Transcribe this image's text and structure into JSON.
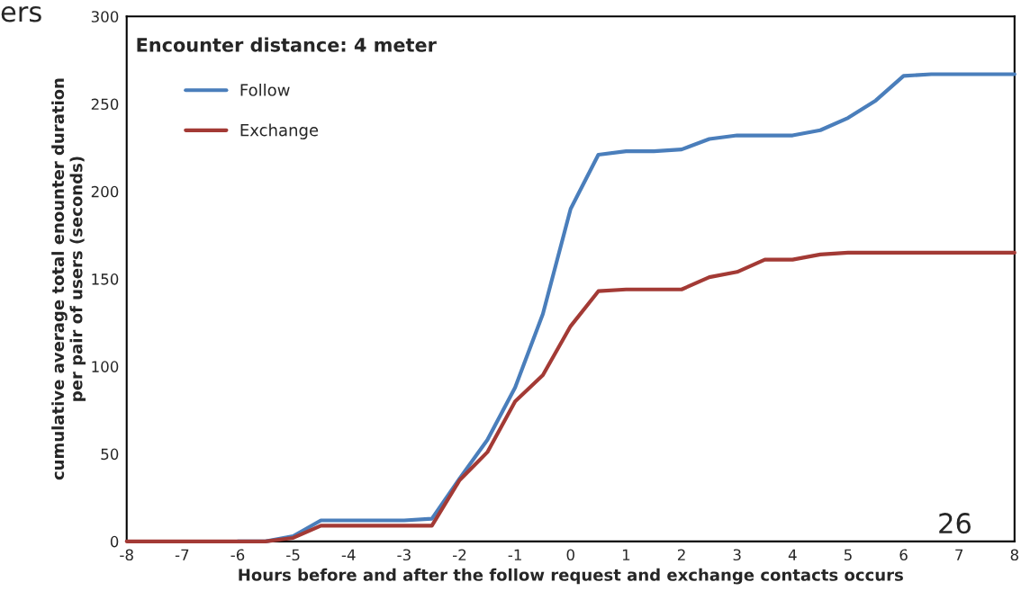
{
  "chart_data": {
    "type": "line",
    "title": "Encounter distance: 4 meter",
    "xlabel": "Hours before and after the follow request and exchange contacts occurs",
    "ylabel": "cumulative average total enounter duration\nper pair of users (seconds)",
    "x": [
      -8,
      -7.5,
      -7,
      -6.5,
      -6,
      -5.5,
      -5,
      -4.5,
      -4,
      -3.5,
      -3,
      -2.5,
      -2,
      -1.5,
      -1,
      -0.5,
      0,
      0.5,
      1,
      1.5,
      2,
      2.5,
      3,
      3.5,
      4,
      4.5,
      5,
      5.5,
      6,
      6.5,
      7,
      7.5,
      8
    ],
    "series": [
      {
        "name": "Follow",
        "color": "#4a7ebb",
        "values": [
          null,
          null,
          null,
          null,
          0,
          0,
          3,
          12,
          12,
          12,
          12,
          13,
          36,
          58,
          88,
          130,
          190,
          221,
          223,
          223,
          224,
          230,
          232,
          232,
          232,
          235,
          242,
          252,
          266,
          267,
          267,
          267,
          267
        ]
      },
      {
        "name": "Exchange",
        "color": "#a33a35",
        "values": [
          0,
          0,
          0,
          0,
          0,
          0,
          2,
          9,
          9,
          9,
          9,
          9,
          35,
          51,
          80,
          95,
          123,
          143,
          144,
          144,
          144,
          151,
          154,
          161,
          161,
          164,
          165,
          165,
          165,
          165,
          165,
          165,
          165
        ]
      }
    ],
    "xlim": [
      -8,
      8
    ],
    "xticks": [
      -8,
      -7,
      -6,
      -5,
      -4,
      -3,
      -2,
      -1,
      0,
      1,
      2,
      3,
      4,
      5,
      6,
      7,
      8
    ],
    "ylim": [
      0,
      300
    ],
    "yticks": [
      0,
      50,
      100,
      150,
      200,
      250,
      300
    ],
    "grid": false,
    "legend": "top left",
    "marker": "none",
    "line_style": "solid",
    "annotations": [
      "ers",
      "26"
    ]
  }
}
